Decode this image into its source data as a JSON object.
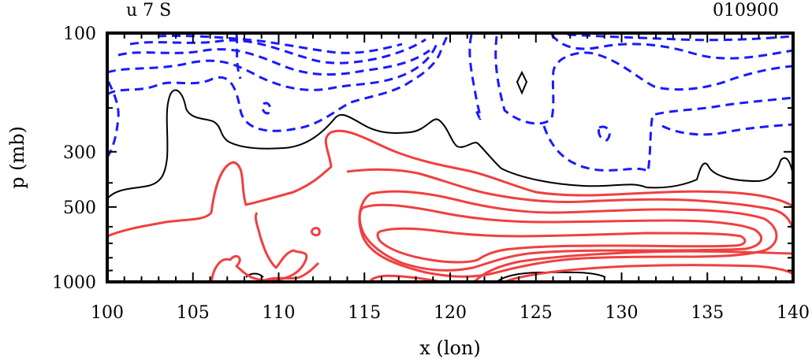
{
  "chart_data": {
    "type": "contour",
    "title_left": "u 7 S",
    "title_right": "010900",
    "xlabel": "x (lon)",
    "ylabel": "p (mb)",
    "xlim": [
      100,
      140
    ],
    "ylim": [
      1000,
      100
    ],
    "x_ticks": [
      100,
      105,
      110,
      115,
      120,
      125,
      130,
      135,
      140
    ],
    "x_tick_labels": [
      "100",
      "105",
      "110",
      "115",
      "120",
      "125",
      "130",
      "135",
      "140"
    ],
    "y_ticks": [
      100,
      300,
      500,
      1000
    ],
    "y_tick_labels": [
      "100",
      "300",
      "500",
      "1000"
    ],
    "colors": {
      "negative": "#1a1aff",
      "zero": "#000000",
      "positive": "#f04040"
    },
    "contour_groups": [
      {
        "name": "zero-contour",
        "style": "solid"
      },
      {
        "name": "negative-contours",
        "style": "dashed"
      },
      {
        "name": "positive-contours",
        "style": "solid"
      }
    ]
  }
}
